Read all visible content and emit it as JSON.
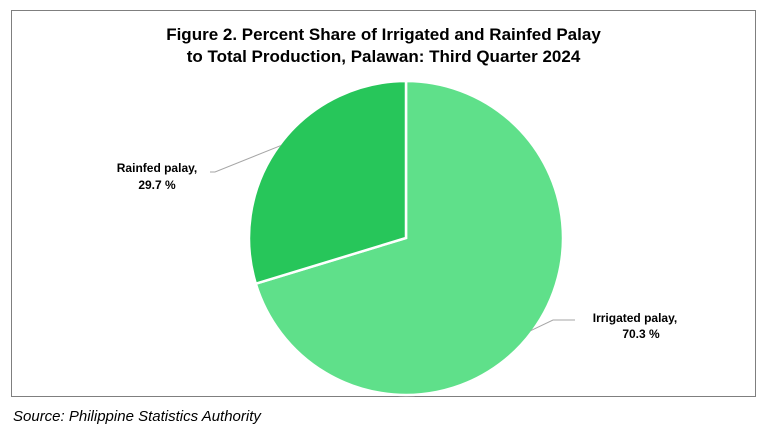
{
  "chart_data": {
    "type": "pie",
    "title_lines": [
      "Figure 2. Percent Share of Irrigated and Rainfed Palay",
      "to Total Production, Palawan: Third Quarter 2024"
    ],
    "slices": [
      {
        "label": "Irrigated palay,",
        "value_label": "70.3 %",
        "value": 70.3,
        "color": "#5fe08a"
      },
      {
        "label": "Rainfed palay,",
        "value_label": "29.7 %",
        "value": 29.7,
        "color": "#27c65a"
      }
    ],
    "start_angle_deg": 0,
    "direction": "clockwise",
    "legend": "none"
  },
  "source": "Source: Philippine Statistics Authority"
}
